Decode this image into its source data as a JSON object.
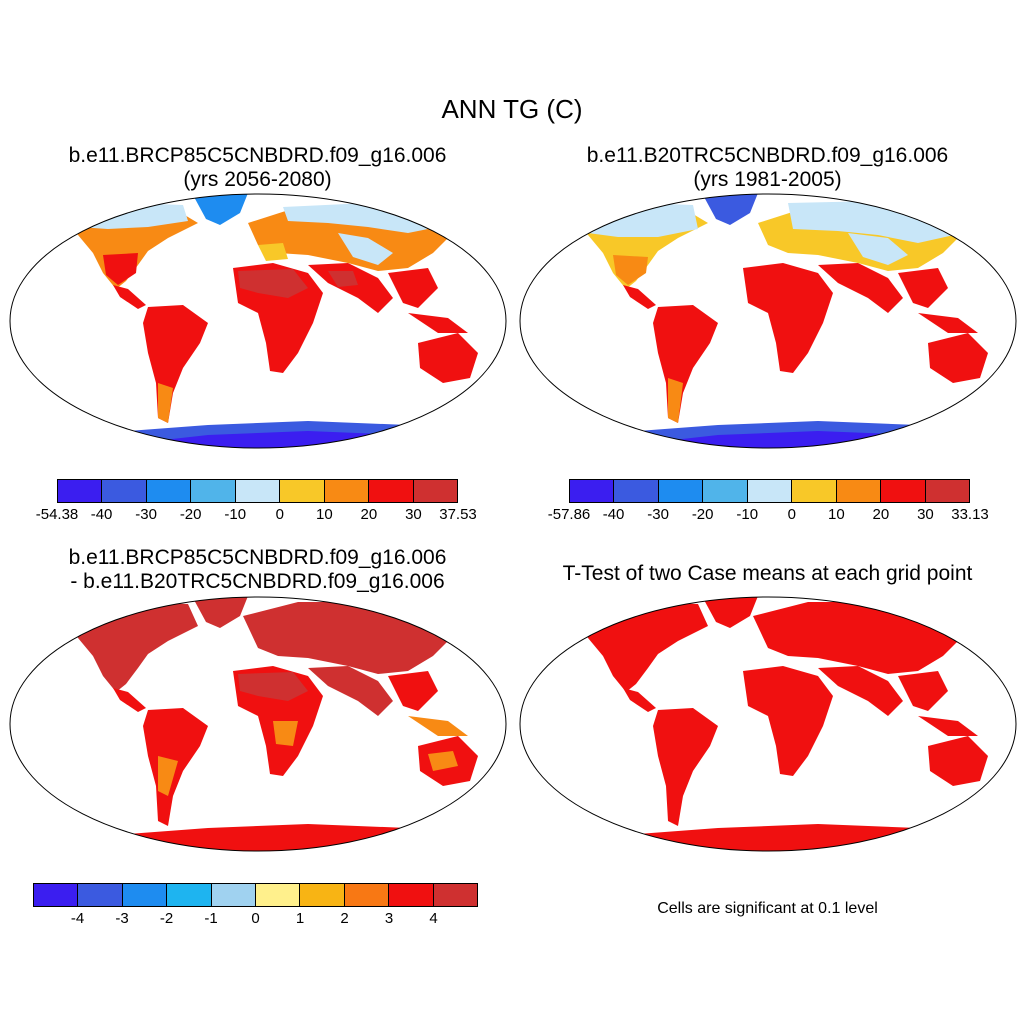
{
  "figure": {
    "title": "ANN TG (C)"
  },
  "panels": {
    "p1": {
      "title_line1": "b.e11.BRCP85C5CNBDRD.f09_g16.006",
      "title_line2": "(yrs 2056-2080)"
    },
    "p2": {
      "title_line1": "b.e11.B20TRC5CNBDRD.f09_g16.006",
      "title_line2": "(yrs 1981-2005)"
    },
    "p3": {
      "title_line1": "b.e11.BRCP85C5CNBDRD.f09_g16.006",
      "title_line2": "- b.e11.B20TRC5CNBDRD.f09_g16.006"
    },
    "p4": {
      "title_line1": "T-Test of two Case means at each grid point",
      "note": "Cells are significant at 0.1 level"
    }
  },
  "colorbars": {
    "cb1": {
      "colors": [
        "#3b1ef0",
        "#3b5ae0",
        "#1e8cf0",
        "#50b4ea",
        "#c8e6f8",
        "#f8c828",
        "#f88a14",
        "#f01010",
        "#cf3030"
      ],
      "tick_labels": [
        "-54.38",
        "-40",
        "-30",
        "-20",
        "-10",
        "0",
        "10",
        "20",
        "30",
        "37.53"
      ]
    },
    "cb2": {
      "colors": [
        "#3b1ef0",
        "#3b5ae0",
        "#1e8cf0",
        "#50b4ea",
        "#c8e6f8",
        "#f8c828",
        "#f88a14",
        "#f01010",
        "#cf3030"
      ],
      "tick_labels": [
        "-57.86",
        "-40",
        "-30",
        "-20",
        "-10",
        "0",
        "10",
        "20",
        "30",
        "33.13"
      ]
    },
    "cb3": {
      "colors": [
        "#3b1ef0",
        "#3b5ae0",
        "#1e8cf0",
        "#1eb4f0",
        "#a0d2f0",
        "#fff08c",
        "#f8b414",
        "#f87814",
        "#f01010",
        "#cf3030"
      ],
      "tick_labels": [
        "-4",
        "-3",
        "-2",
        "-1",
        "0",
        "1",
        "2",
        "3",
        "4"
      ]
    }
  },
  "legend_colors": {
    "significant": "#f01010"
  }
}
